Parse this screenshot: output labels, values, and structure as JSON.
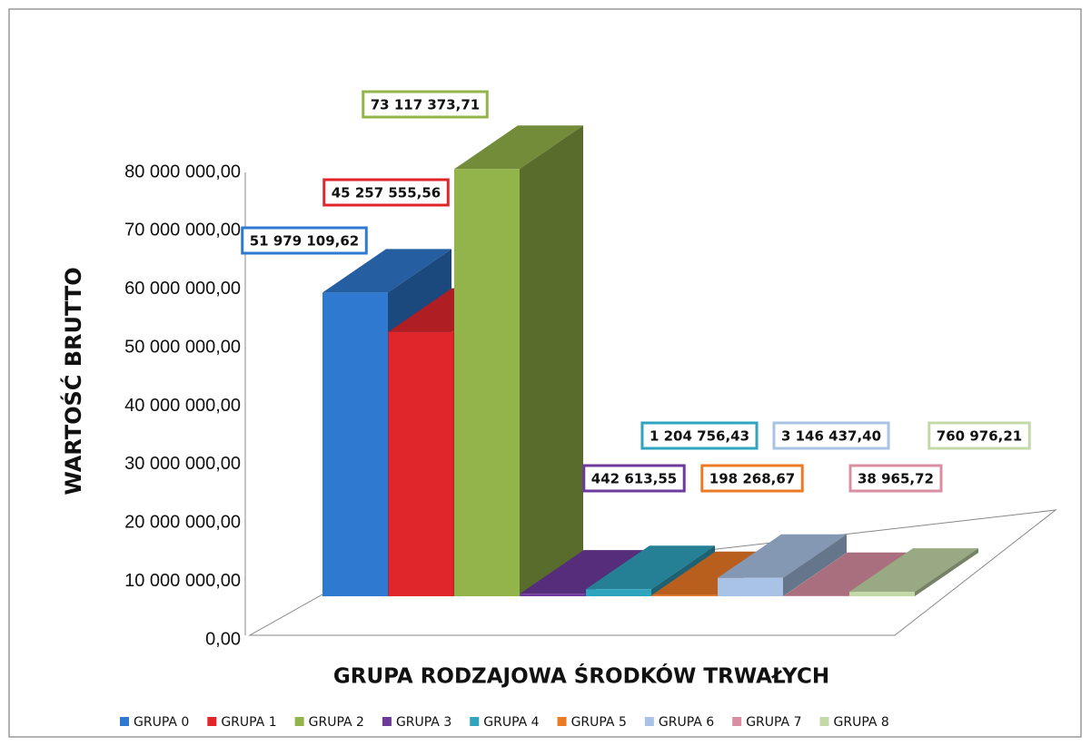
{
  "chart_data": {
    "type": "bar3d",
    "ylabel": "WARTOŚĆ   BRUTTO",
    "xlabel": "GRUPA RODZAJOWA ŚRODKÓW TRWAŁYCH",
    "ylim": [
      0,
      80000000
    ],
    "yticks": [
      {
        "value": 0,
        "label": "0,00"
      },
      {
        "value": 10000000,
        "label": "10 000 000,00"
      },
      {
        "value": 20000000,
        "label": "20 000 000,00"
      },
      {
        "value": 30000000,
        "label": "30 000 000,00"
      },
      {
        "value": 40000000,
        "label": "40 000 000,00"
      },
      {
        "value": 50000000,
        "label": "50 000 000,00"
      },
      {
        "value": 60000000,
        "label": "60 000 000,00"
      },
      {
        "value": 70000000,
        "label": "70 000 000,00"
      },
      {
        "value": 80000000,
        "label": "80 000 000,00"
      }
    ],
    "legend": "bottom",
    "series": [
      {
        "name": "GRUPA 0",
        "color": "#2f7ad0",
        "values": [
          51979109.62
        ],
        "value_labels": [
          "51 979 109,62"
        ]
      },
      {
        "name": "GRUPA 1",
        "color": "#e0262b",
        "values": [
          45257555.56
        ],
        "value_labels": [
          "45 257 555,56"
        ]
      },
      {
        "name": "GRUPA 2",
        "color": "#93b44a",
        "values": [
          73117373.71
        ],
        "value_labels": [
          "73 117 373,71"
        ]
      },
      {
        "name": "GRUPA 3",
        "color": "#6e3a9c",
        "values": [
          442613.55
        ],
        "value_labels": [
          "442 613,55"
        ]
      },
      {
        "name": "GRUPA 4",
        "color": "#2fa4bf",
        "values": [
          1204756.43
        ],
        "value_labels": [
          "1 204 756,43"
        ]
      },
      {
        "name": "GRUPA 5",
        "color": "#ec7a25",
        "values": [
          198268.67
        ],
        "value_labels": [
          "198 268,67"
        ]
      },
      {
        "name": "GRUPA 6",
        "color": "#a9c3e6",
        "values": [
          3146437.4
        ],
        "value_labels": [
          "3 146 437,40"
        ]
      },
      {
        "name": "GRUPA 7",
        "color": "#d98ea2",
        "values": [
          38965.72
        ],
        "value_labels": [
          "38 965,72"
        ]
      },
      {
        "name": "GRUPA 8",
        "color": "#c4d9a8",
        "values": [
          760976.21
        ],
        "value_labels": [
          "760 976,21"
        ]
      }
    ]
  }
}
